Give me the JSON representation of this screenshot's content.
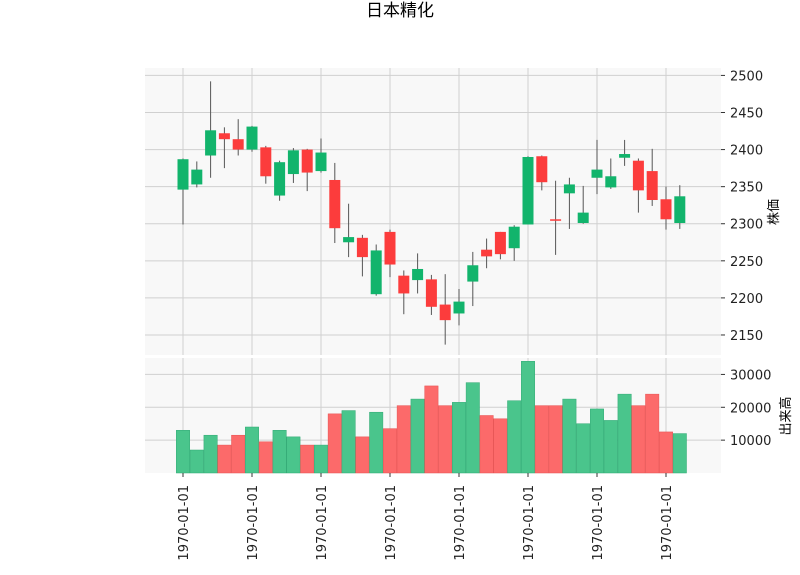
{
  "chart_data": {
    "type": "candlestick",
    "title": "日本精化",
    "colors": {
      "up": "#12b46c",
      "down": "#fc3c3c",
      "volume_up": "#4ac58c",
      "volume_down": "#fc6a6a",
      "wick": "#555555",
      "panel_bg": "#f8f8f8",
      "grid": "#d0d0d0"
    },
    "price_axis": {
      "label": "株価",
      "ticks": [
        2150,
        2200,
        2250,
        2300,
        2350,
        2400,
        2450,
        2500
      ],
      "range": [
        2123,
        2510
      ]
    },
    "volume_axis": {
      "label": "出来高",
      "ticks": [
        10000,
        20000,
        30000
      ],
      "tick_labels": [
        "10000",
        "20000",
        "30000"
      ],
      "range": [
        0,
        35000
      ]
    },
    "x_tick_labels": [
      "1970-01-01",
      "1970-01-01",
      "1970-01-01",
      "1970-01-01",
      "1970-01-01",
      "1970-01-01",
      "1970-01-01",
      "1970-01-01"
    ],
    "x_tick_indices": [
      0,
      5,
      10,
      15,
      20,
      25,
      30,
      35
    ],
    "grid": true,
    "candles": [
      {
        "o": 2346,
        "h": 2388,
        "l": 2299,
        "c": 2387,
        "v": 13000
      },
      {
        "o": 2353,
        "h": 2384,
        "l": 2349,
        "c": 2373,
        "v": 7000
      },
      {
        "o": 2392,
        "h": 2492,
        "l": 2362,
        "c": 2426,
        "v": 11500
      },
      {
        "o": 2422,
        "h": 2430,
        "l": 2375,
        "c": 2414,
        "v": 8500
      },
      {
        "o": 2414,
        "h": 2441,
        "l": 2392,
        "c": 2400,
        "v": 11500
      },
      {
        "o": 2400,
        "h": 2432,
        "l": 2397,
        "c": 2431,
        "v": 14000
      },
      {
        "o": 2403,
        "h": 2405,
        "l": 2354,
        "c": 2364,
        "v": 9500
      },
      {
        "o": 2338,
        "h": 2385,
        "l": 2331,
        "c": 2383,
        "v": 13000
      },
      {
        "o": 2367,
        "h": 2402,
        "l": 2355,
        "c": 2399,
        "v": 11000
      },
      {
        "o": 2400,
        "h": 2401,
        "l": 2344,
        "c": 2369,
        "v": 8500
      },
      {
        "o": 2371,
        "h": 2415,
        "l": 2369,
        "c": 2396,
        "v": 8500
      },
      {
        "o": 2359,
        "h": 2382,
        "l": 2274,
        "c": 2294,
        "v": 18000
      },
      {
        "o": 2275,
        "h": 2327,
        "l": 2255,
        "c": 2282,
        "v": 19000
      },
      {
        "o": 2281,
        "h": 2285,
        "l": 2229,
        "c": 2255,
        "v": 11000
      },
      {
        "o": 2205,
        "h": 2272,
        "l": 2203,
        "c": 2264,
        "v": 18500
      },
      {
        "o": 2289,
        "h": 2292,
        "l": 2228,
        "c": 2245,
        "v": 13500
      },
      {
        "o": 2230,
        "h": 2237,
        "l": 2178,
        "c": 2206,
        "v": 20500
      },
      {
        "o": 2224,
        "h": 2260,
        "l": 2206,
        "c": 2239,
        "v": 22500
      },
      {
        "o": 2225,
        "h": 2231,
        "l": 2177,
        "c": 2188,
        "v": 26500
      },
      {
        "o": 2191,
        "h": 2232,
        "l": 2137,
        "c": 2170,
        "v": 20500
      },
      {
        "o": 2179,
        "h": 2212,
        "l": 2163,
        "c": 2195,
        "v": 21500
      },
      {
        "o": 2222,
        "h": 2262,
        "l": 2189,
        "c": 2244,
        "v": 27500
      },
      {
        "o": 2265,
        "h": 2280,
        "l": 2240,
        "c": 2256,
        "v": 17500
      },
      {
        "o": 2289,
        "h": 2289,
        "l": 2252,
        "c": 2259,
        "v": 16500
      },
      {
        "o": 2267,
        "h": 2298,
        "l": 2250,
        "c": 2296,
        "v": 22000
      },
      {
        "o": 2299,
        "h": 2391,
        "l": 2299,
        "c": 2390,
        "v": 34000
      },
      {
        "o": 2391,
        "h": 2392,
        "l": 2345,
        "c": 2356,
        "v": 20500
      },
      {
        "o": 2306,
        "h": 2358,
        "l": 2258,
        "c": 2304,
        "v": 20500
      },
      {
        "o": 2341,
        "h": 2362,
        "l": 2293,
        "c": 2353,
        "v": 22500
      },
      {
        "o": 2301,
        "h": 2351,
        "l": 2300,
        "c": 2315,
        "v": 15000
      },
      {
        "o": 2362,
        "h": 2413,
        "l": 2340,
        "c": 2373,
        "v": 19500
      },
      {
        "o": 2349,
        "h": 2388,
        "l": 2347,
        "c": 2364,
        "v": 16000
      },
      {
        "o": 2389,
        "h": 2413,
        "l": 2378,
        "c": 2394,
        "v": 24000
      },
      {
        "o": 2385,
        "h": 2388,
        "l": 2315,
        "c": 2345,
        "v": 20500
      },
      {
        "o": 2371,
        "h": 2401,
        "l": 2324,
        "c": 2332,
        "v": 24000
      },
      {
        "o": 2333,
        "h": 2350,
        "l": 2292,
        "c": 2306,
        "v": 12500
      },
      {
        "o": 2301,
        "h": 2352,
        "l": 2293,
        "c": 2337,
        "v": 12000
      }
    ]
  }
}
